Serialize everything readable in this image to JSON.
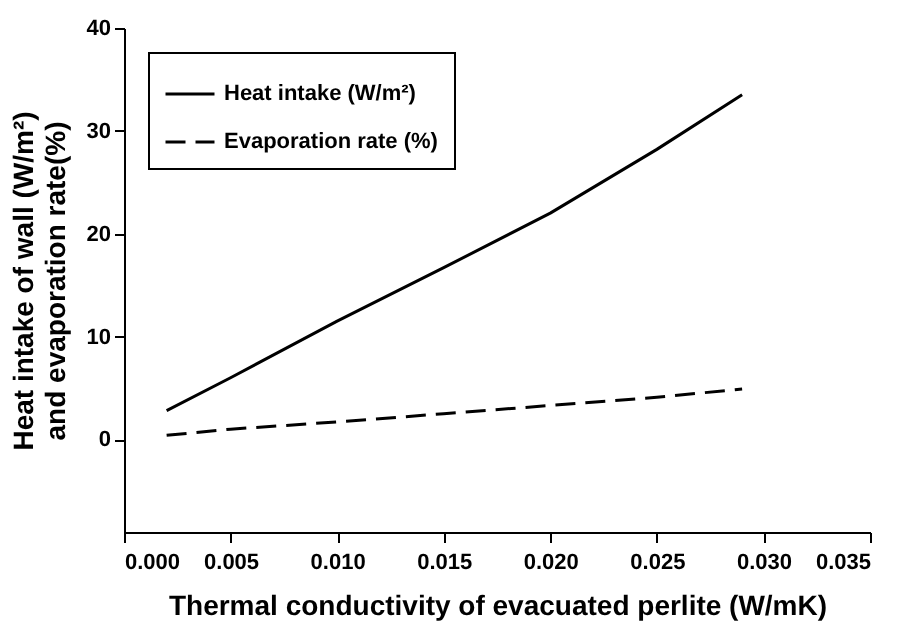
{
  "chart_data": {
    "type": "line",
    "xlabel": "Thermal conductivity of evacuated perlite (W/mK)",
    "ylabel": "Heat intake of wall (W/m²)\nand evaporation rate(%)",
    "x": [
      0.002,
      0.005,
      0.01,
      0.015,
      0.02,
      0.025,
      0.029
    ],
    "series": [
      {
        "name": "Heat intake (W/m²)",
        "color": "#000000",
        "line_style": "solid",
        "values": [
          2.8,
          6.0,
          11.5,
          16.7,
          22.0,
          28.2,
          33.5
        ]
      },
      {
        "name": "Evaporation rate (%)",
        "color": "#000000",
        "line_style": "dashed",
        "values": [
          0.4,
          1.0,
          1.7,
          2.5,
          3.3,
          4.1,
          4.9
        ]
      }
    ],
    "xlim": [
      0.0,
      0.035
    ],
    "xticks": [
      {
        "value": 0.0,
        "label": "0.000"
      },
      {
        "value": 0.005,
        "label": "0.005"
      },
      {
        "value": 0.01,
        "label": "0.010"
      },
      {
        "value": 0.015,
        "label": "0.015"
      },
      {
        "value": 0.02,
        "label": "0.020"
      },
      {
        "value": 0.025,
        "label": "0.025"
      },
      {
        "value": 0.03,
        "label": "0.030"
      },
      {
        "value": 0.035,
        "label": "0.035"
      }
    ],
    "ylim": [
      -9,
      40
    ],
    "yticks": [
      0,
      10,
      20,
      30,
      40
    ],
    "grid": false,
    "legend": "top left",
    "marker": "none"
  }
}
